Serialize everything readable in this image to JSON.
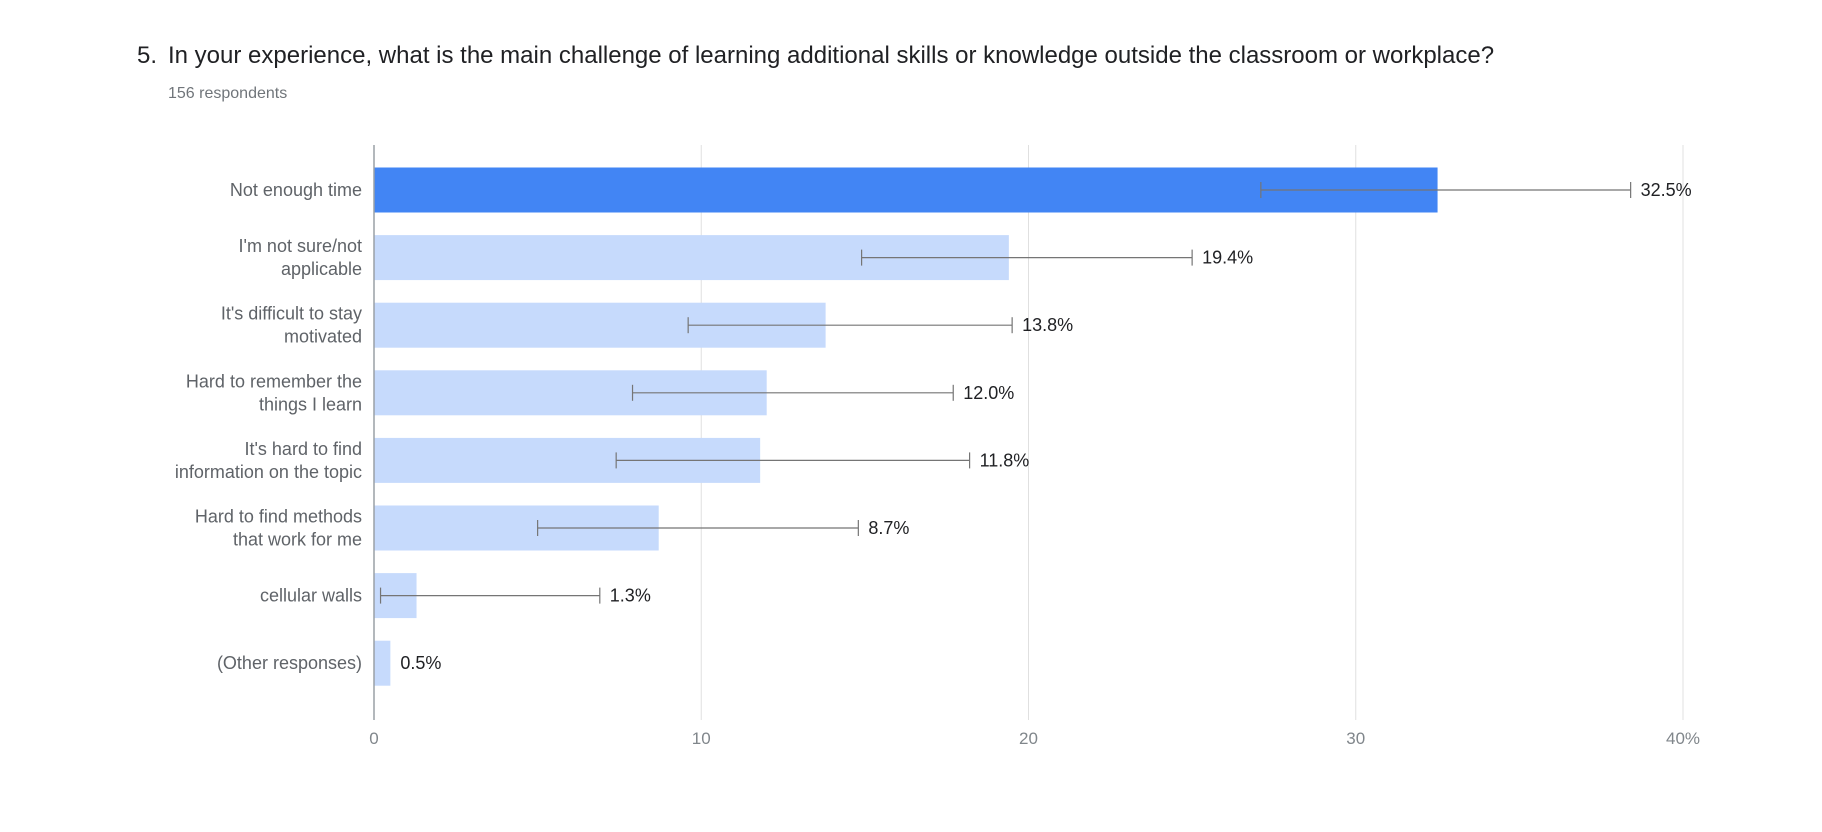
{
  "question": {
    "number": "5.",
    "text": "In your experience, what is the main challenge of learning additional skills or knowledge outside the classroom or workplace?",
    "respondents": "156 respondents"
  },
  "colors": {
    "highlight": "#4285f4",
    "bar": "#c6dafc",
    "grid": "#e0e0e0",
    "error_bar": "#757575",
    "axis": "#9aa0a6"
  },
  "chart_data": {
    "type": "bar",
    "orientation": "horizontal",
    "categories": [
      [
        "Not enough time"
      ],
      [
        "I'm not sure/not",
        "applicable"
      ],
      [
        "It's difficult to stay",
        "motivated"
      ],
      [
        "Hard to remember the",
        "things I learn"
      ],
      [
        "It's hard to find",
        "information on the topic"
      ],
      [
        "Hard to find methods",
        "that work for me"
      ],
      [
        "cellular walls"
      ],
      [
        "(Other responses)"
      ]
    ],
    "values": [
      32.5,
      19.4,
      13.8,
      12.0,
      11.8,
      8.7,
      1.3,
      0.5
    ],
    "value_labels": [
      "32.5%",
      "19.4%",
      "13.8%",
      "12.0%",
      "11.8%",
      "8.7%",
      "1.3%",
      "0.5%"
    ],
    "error_bars": [
      [
        27.1,
        38.4
      ],
      [
        14.9,
        25.0
      ],
      [
        9.6,
        19.5
      ],
      [
        7.9,
        17.7
      ],
      [
        7.4,
        18.2
      ],
      [
        5.0,
        14.8
      ],
      [
        0.2,
        6.9
      ],
      null
    ],
    "highlighted_index": 0,
    "xlim": [
      0,
      40
    ],
    "xticks": [
      0,
      10,
      20,
      30,
      40
    ],
    "xtick_labels": [
      "0",
      "10",
      "20",
      "30",
      "40%"
    ],
    "grid": true
  }
}
